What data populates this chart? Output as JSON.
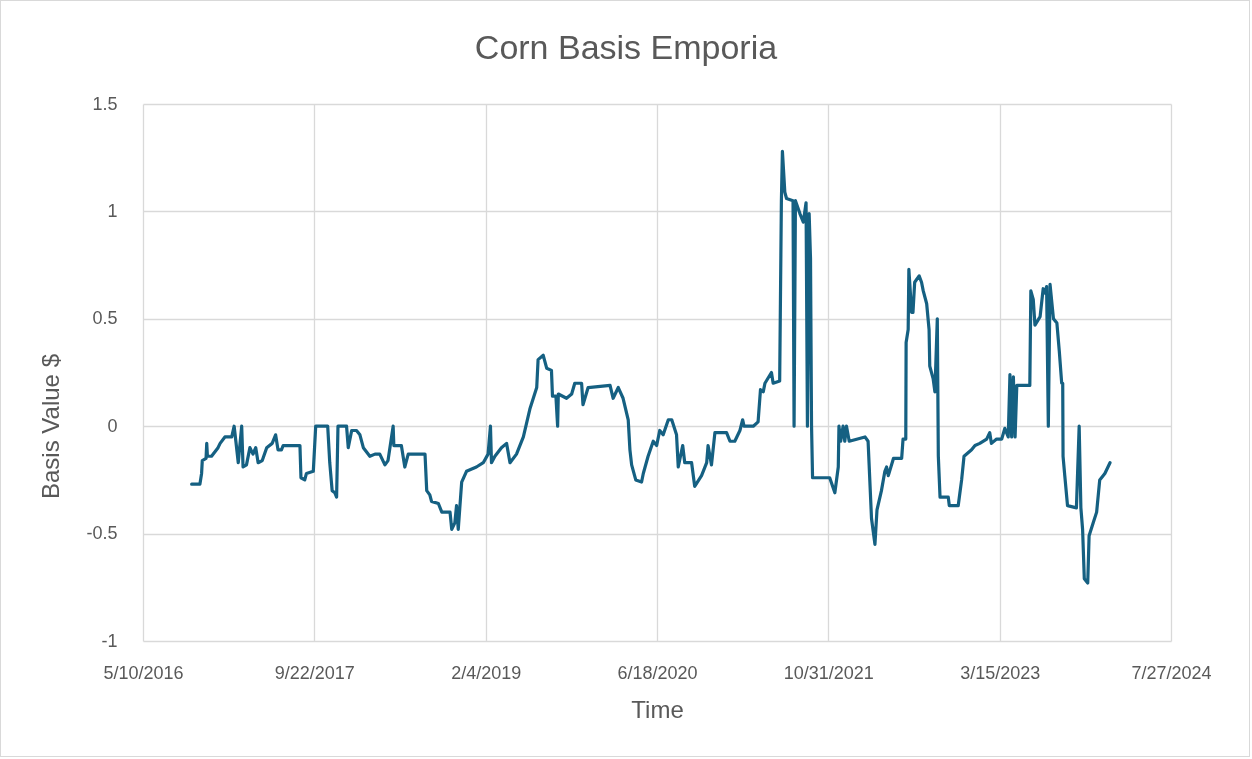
{
  "chart_data": {
    "type": "line",
    "title": "Corn Basis Emporia",
    "xlabel": "Time",
    "ylabel": "Basis Value $",
    "xlim": [
      "2016-05-10",
      "2024-07-27"
    ],
    "xticks": [
      {
        "value": "2016-05-10",
        "label": "5/10/2016"
      },
      {
        "value": "2017-09-22",
        "label": "9/22/2017"
      },
      {
        "value": "2019-02-04",
        "label": "2/4/2019"
      },
      {
        "value": "2020-06-18",
        "label": "6/18/2020"
      },
      {
        "value": "2021-10-31",
        "label": "10/31/2021"
      },
      {
        "value": "2023-03-15",
        "label": "3/15/2023"
      },
      {
        "value": "2024-07-27",
        "label": "7/27/2024"
      }
    ],
    "ylim": [
      -1,
      1.5
    ],
    "yticks": [
      -1,
      -0.5,
      0,
      0.5,
      1,
      1.5
    ],
    "grid": true,
    "x": [
      "2016-09-29",
      "2016-10-23",
      "2016-10-28",
      "2016-10-30",
      "2016-11-10",
      "2016-11-12",
      "2016-11-14",
      "2016-11-26",
      "2016-12-15",
      "2016-12-21",
      "2017-01-04",
      "2017-01-24",
      "2017-01-31",
      "2017-02-05",
      "2017-02-12",
      "2017-02-22",
      "2017-02-26",
      "2017-03-08",
      "2017-03-18",
      "2017-03-27",
      "2017-04-04",
      "2017-04-11",
      "2017-04-23",
      "2017-05-06",
      "2017-05-22",
      "2017-06-01",
      "2017-06-08",
      "2017-06-18",
      "2017-06-23",
      "2017-08-11",
      "2017-08-14",
      "2017-08-25",
      "2017-08-30",
      "2017-09-19",
      "2017-09-26",
      "2017-10-31",
      "2017-11-06",
      "2017-11-13",
      "2017-11-21",
      "2017-11-26",
      "2017-11-30",
      "2017-12-25",
      "2017-12-30",
      "2018-01-09",
      "2018-01-23",
      "2018-02-02",
      "2018-02-12",
      "2018-03-03",
      "2018-03-18",
      "2018-04-01",
      "2018-04-16",
      "2018-04-25",
      "2018-05-10",
      "2018-05-12",
      "2018-06-03",
      "2018-06-13",
      "2018-06-23",
      "2018-08-11",
      "2018-08-16",
      "2018-08-25",
      "2018-08-30",
      "2018-09-19",
      "2018-09-29",
      "2018-10-23",
      "2018-10-28",
      "2018-11-06",
      "2018-11-11",
      "2018-11-16",
      "2018-11-26",
      "2018-12-10",
      "2019-01-08",
      "2019-01-28",
      "2019-02-11",
      "2019-02-18",
      "2019-02-21",
      "2019-03-03",
      "2019-03-22",
      "2019-04-06",
      "2019-04-16",
      "2019-05-05",
      "2019-05-25",
      "2019-06-13",
      "2019-07-03",
      "2019-07-07",
      "2019-07-22",
      "2019-08-01",
      "2019-08-15",
      "2019-08-18",
      "2019-08-28",
      "2019-09-02",
      "2019-09-04",
      "2019-09-28",
      "2019-10-13",
      "2019-10-22",
      "2019-11-11",
      "2019-11-15",
      "2019-11-30",
      "2020-02-02",
      "2020-02-11",
      "2020-02-26",
      "2020-03-11",
      "2020-03-26",
      "2020-03-31",
      "2020-04-05",
      "2020-04-17",
      "2020-05-04",
      "2020-05-09",
      "2020-05-23",
      "2020-06-07",
      "2020-06-17",
      "2020-06-26",
      "2020-07-06",
      "2020-07-21",
      "2020-07-31",
      "2020-08-14",
      "2020-08-19",
      "2020-09-01",
      "2020-09-07",
      "2020-09-27",
      "2020-10-06",
      "2020-10-26",
      "2020-11-10",
      "2020-11-14",
      "2020-11-24",
      "2020-12-04",
      "2021-01-07",
      "2021-01-17",
      "2021-01-31",
      "2021-02-15",
      "2021-02-23",
      "2021-02-27",
      "2021-03-26",
      "2021-04-09",
      "2021-04-16",
      "2021-04-24",
      "2021-04-29",
      "2021-05-18",
      "2021-05-23",
      "2021-06-11",
      "2021-06-16",
      "2021-06-19",
      "2021-06-26",
      "2021-07-01",
      "2021-07-20",
      "2021-07-23",
      "2021-07-27",
      "2021-08-09",
      "2021-08-19",
      "2021-08-27",
      "2021-08-31",
      "2021-09-05",
      "2021-09-09",
      "2021-09-12",
      "2021-09-15",
      "2021-11-04",
      "2021-11-19",
      "2021-11-29",
      "2021-12-01",
      "2021-12-06",
      "2021-12-13",
      "2021-12-18",
      "2021-12-23",
      "2021-12-31",
      "2022-02-15",
      "2022-02-24",
      "2022-03-06",
      "2022-03-16",
      "2022-03-22",
      "2022-04-04",
      "2022-04-14",
      "2022-04-19",
      "2022-04-24",
      "2022-05-09",
      "2022-06-02",
      "2022-06-06",
      "2022-06-14",
      "2022-06-15",
      "2022-06-21",
      "2022-06-23",
      "2022-07-01",
      "2022-07-05",
      "2022-07-10",
      "2022-07-23",
      "2022-07-30",
      "2022-08-04",
      "2022-08-14",
      "2022-08-21",
      "2022-08-23",
      "2022-09-02",
      "2022-09-07",
      "2022-09-14",
      "2022-09-17",
      "2022-09-22",
      "2022-10-16",
      "2022-10-19",
      "2022-11-14",
      "2022-11-19",
      "2022-11-24",
      "2022-12-01",
      "2022-12-23",
      "2023-01-02",
      "2023-01-16",
      "2023-02-05",
      "2023-02-14",
      "2023-02-19",
      "2023-03-06",
      "2023-03-21",
      "2023-03-30",
      "2023-04-09",
      "2023-04-14",
      "2023-04-19",
      "2023-04-24",
      "2023-04-29",
      "2023-05-04",
      "2023-06-11",
      "2023-06-14",
      "2023-06-21",
      "2023-06-26",
      "2023-07-11",
      "2023-07-20",
      "2023-07-25",
      "2023-07-30",
      "2023-08-04",
      "2023-08-09",
      "2023-08-19",
      "2023-08-29",
      "2023-09-05",
      "2023-09-12",
      "2023-09-15",
      "2023-09-16",
      "2023-09-21",
      "2023-09-29",
      "2023-10-25",
      "2023-11-02",
      "2023-11-07",
      "2023-11-12",
      "2023-11-17",
      "2023-11-27",
      "2023-12-01",
      "2023-12-13",
      "2023-12-23",
      "2024-01-01",
      "2024-01-16",
      "2024-01-31"
    ],
    "series": [
      {
        "color": "#156082",
        "values": [
          -0.27,
          -0.27,
          -0.22,
          -0.16,
          -0.15,
          -0.08,
          -0.14,
          -0.14,
          -0.1,
          -0.08,
          -0.05,
          -0.05,
          0,
          -0.07,
          -0.17,
          0,
          -0.19,
          -0.18,
          -0.1,
          -0.13,
          -0.1,
          -0.17,
          -0.16,
          -0.1,
          -0.08,
          -0.04,
          -0.11,
          -0.11,
          -0.09,
          -0.09,
          -0.24,
          -0.25,
          -0.22,
          -0.21,
          0,
          0,
          -0.17,
          -0.3,
          -0.31,
          -0.33,
          0,
          0,
          -0.1,
          -0.02,
          -0.02,
          -0.04,
          -0.1,
          -0.14,
          -0.13,
          -0.13,
          -0.18,
          -0.16,
          0,
          -0.09,
          -0.09,
          -0.19,
          -0.13,
          -0.13,
          -0.3,
          -0.32,
          -0.35,
          -0.36,
          -0.4,
          -0.4,
          -0.48,
          -0.45,
          -0.37,
          -0.48,
          -0.26,
          -0.21,
          -0.19,
          -0.17,
          -0.13,
          0,
          -0.17,
          -0.14,
          -0.1,
          -0.08,
          -0.17,
          -0.13,
          -0.05,
          0.08,
          0.18,
          0.31,
          0.33,
          0.27,
          0.26,
          0.14,
          0.14,
          0,
          0.15,
          0.13,
          0.15,
          0.2,
          0.2,
          0.1,
          0.18,
          0.19,
          0.13,
          0.18,
          0.13,
          0.03,
          -0.11,
          -0.18,
          -0.25,
          -0.26,
          -0.22,
          -0.14,
          -0.07,
          -0.09,
          -0.02,
          -0.04,
          0.03,
          0.03,
          -0.04,
          -0.19,
          -0.09,
          -0.17,
          -0.17,
          -0.28,
          -0.23,
          -0.17,
          -0.09,
          -0.18,
          -0.03,
          -0.03,
          -0.07,
          -0.07,
          -0.02,
          0.03,
          0,
          0,
          0.02,
          0.17,
          0.16,
          0.2,
          0.25,
          0.2,
          0.21,
          1.05,
          1.28,
          1.09,
          1.06,
          1.05,
          0,
          1.05,
          0.99,
          0.95,
          1.04,
          0,
          0.99,
          0.78,
          0,
          -0.24,
          -0.24,
          -0.31,
          -0.19,
          0,
          -0.07,
          0,
          -0.07,
          0,
          -0.07,
          -0.05,
          -0.07,
          -0.43,
          -0.55,
          -0.39,
          -0.3,
          -0.21,
          -0.19,
          -0.23,
          -0.15,
          -0.15,
          -0.06,
          -0.06,
          0.39,
          0.45,
          0.73,
          0.53,
          0.53,
          0.67,
          0.7,
          0.67,
          0.63,
          0.57,
          0.45,
          0.28,
          0.22,
          0.16,
          0.5,
          -0.14,
          -0.33,
          -0.33,
          -0.37,
          -0.37,
          -0.31,
          -0.25,
          -0.14,
          -0.11,
          -0.09,
          -0.08,
          -0.06,
          -0.03,
          -0.08,
          -0.06,
          -0.06,
          -0.01,
          -0.05,
          0.24,
          -0.05,
          0.23,
          -0.05,
          0.19,
          0.19,
          0.63,
          0.59,
          0.47,
          0.51,
          0.64,
          0.62,
          0.65,
          0,
          0.66,
          0.5,
          0.48,
          0.35,
          0.2,
          0.2,
          -0.14,
          -0.23,
          -0.37,
          -0.38,
          0,
          -0.38,
          -0.48,
          -0.71,
          -0.73,
          -0.51,
          -0.45,
          -0.4,
          -0.25,
          -0.22,
          -0.17
        ]
      }
    ]
  }
}
